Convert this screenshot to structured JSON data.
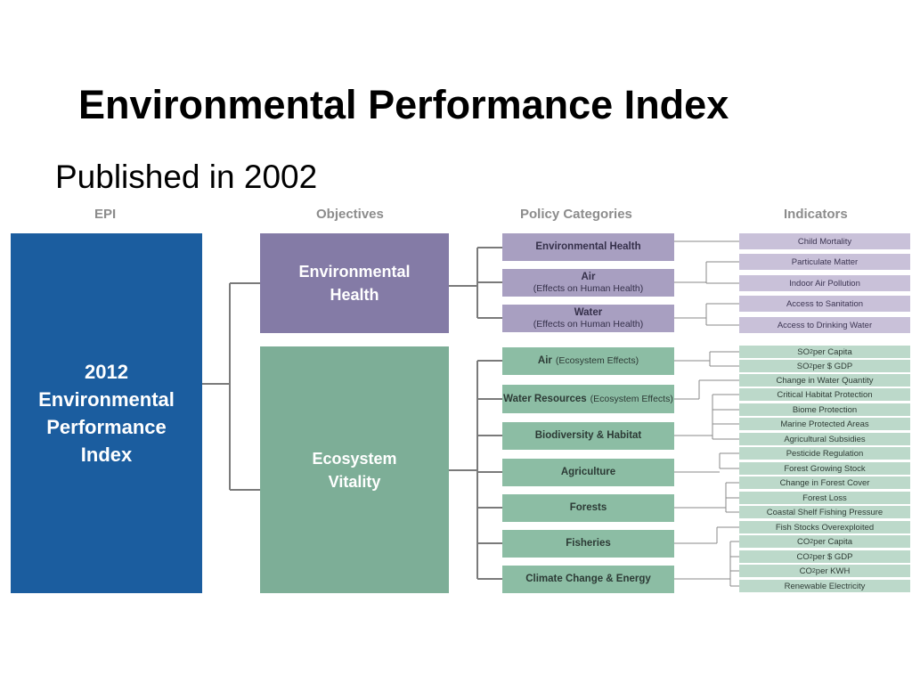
{
  "slide": {
    "title": "Environmental Performance Index",
    "subtitle": "Published in 2002"
  },
  "diagram": {
    "headers": {
      "epi": "EPI",
      "objectives": "Objectives",
      "policy": "Policy Categories",
      "indicators": "Indicators"
    },
    "epi": {
      "line1": "2012",
      "line2": "Environmental",
      "line3": "Performance",
      "line4": "Index"
    },
    "objectives": {
      "health": {
        "line1": "Environmental",
        "line2": "Health"
      },
      "eco": {
        "line1": "Ecosystem",
        "line2": "Vitality"
      }
    },
    "policy": {
      "env_health": {
        "main": "Environmental Health",
        "sub": ""
      },
      "air_health": {
        "main": "Air",
        "sub": "(Effects on Human Health)"
      },
      "water_health": {
        "main": "Water",
        "sub": "(Effects on Human Health)"
      },
      "air_eco": {
        "main": "Air",
        "sub": "(Ecosystem Effects)"
      },
      "water_res": {
        "main": "Water Resources",
        "sub": "(Ecosystem Effects)"
      },
      "biodiversity": {
        "main": "Biodiversity & Habitat",
        "sub": ""
      },
      "agriculture": {
        "main": "Agriculture",
        "sub": ""
      },
      "forests": {
        "main": "Forests",
        "sub": ""
      },
      "fisheries": {
        "main": "Fisheries",
        "sub": ""
      },
      "climate": {
        "main": "Climate Change & Energy",
        "sub": ""
      }
    },
    "indicators": {
      "child_mortality": "Child Mortality",
      "particulate": "Particulate Matter",
      "indoor_air": "Indoor Air Pollution",
      "sanitation": "Access to Sanitation",
      "drinking_water": "Access to Drinking Water",
      "so2_capita": {
        "pre": "SO",
        "sub": "2",
        "post": " per Capita"
      },
      "so2_gdp": {
        "pre": "SO",
        "sub": "2",
        "post": " per $ GDP"
      },
      "water_quantity": "Change in Water Quantity",
      "critical_habitat": "Critical Habitat Protection",
      "biome": "Biome Protection",
      "marine": "Marine Protected Areas",
      "ag_subsidies": "Agricultural Subsidies",
      "pesticide": "Pesticide Regulation",
      "forest_stock": "Forest Growing Stock",
      "forest_cover": "Change in Forest Cover",
      "forest_loss": "Forest Loss",
      "coastal": "Coastal Shelf Fishing Pressure",
      "fish_stocks": "Fish Stocks Overexploited",
      "co2_capita": {
        "pre": "CO",
        "sub": "2",
        "post": " per Capita"
      },
      "co2_gdp": {
        "pre": "CO",
        "sub": "2",
        "post": " per $ GDP"
      },
      "co2_kwh": {
        "pre": "CO",
        "sub": "2",
        "post": " per KWH"
      },
      "renewable": "Renewable Electricity"
    },
    "colors": {
      "epi": "#1b5d9f",
      "health_objective": "#847ba6",
      "eco_objective": "#7dae97",
      "health_policy": "#a89fc1",
      "eco_policy": "#8cbda4",
      "health_indicator": "#c9c1d9",
      "eco_indicator": "#bcd9ca",
      "connector": "#7a7a7a"
    }
  }
}
